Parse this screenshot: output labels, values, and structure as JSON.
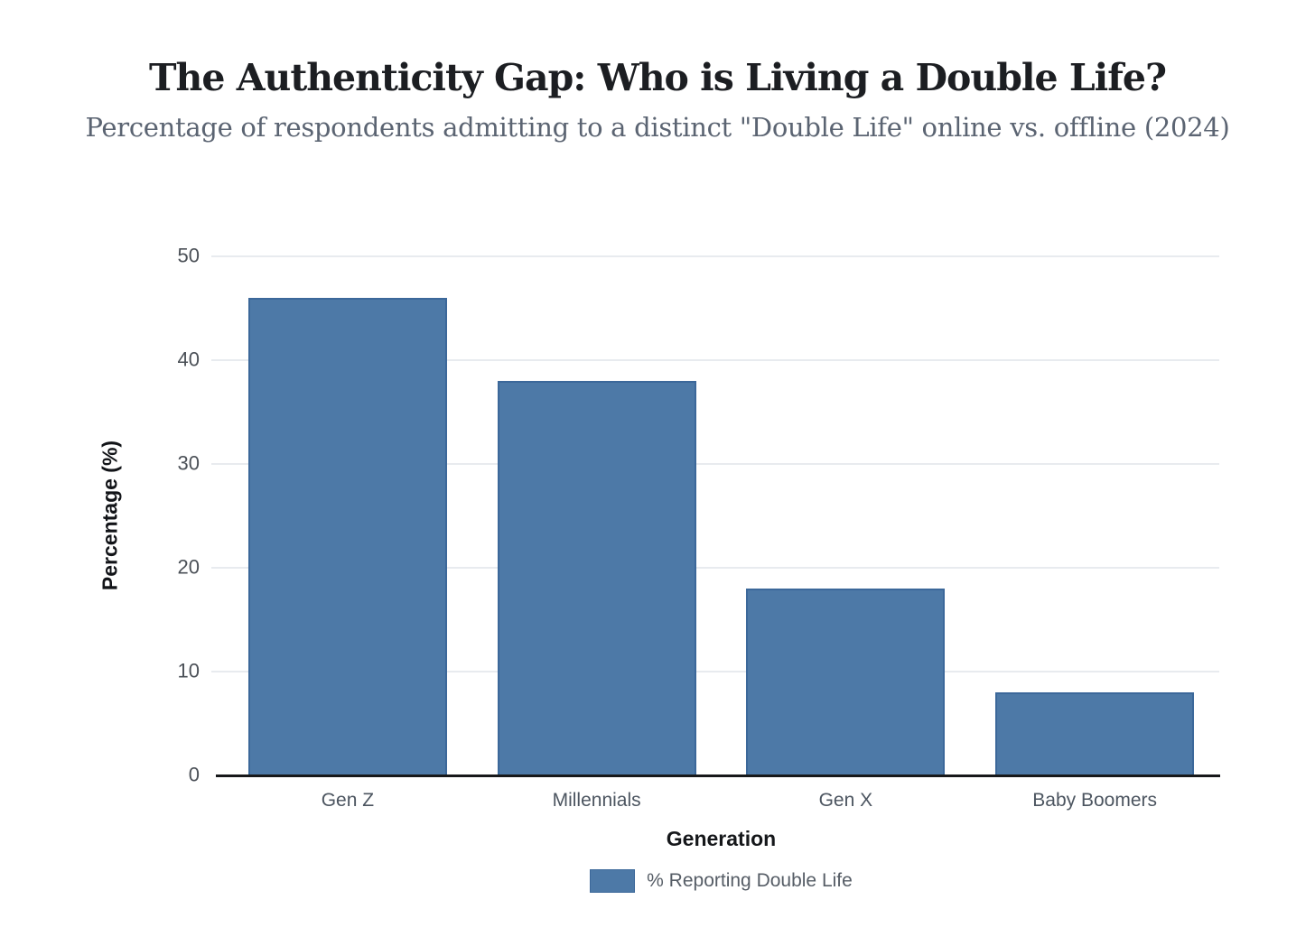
{
  "chart_data": {
    "type": "bar",
    "title": "The Authenticity Gap: Who is Living a Double Life?",
    "subtitle": "Percentage of respondents admitting to a distinct \"Double Life\" online vs. offline (2024)",
    "categories": [
      "Gen Z",
      "Millennials",
      "Gen X",
      "Baby Boomers"
    ],
    "series": [
      {
        "name": "% Reporting Double Life",
        "values": [
          46,
          38,
          18,
          8
        ]
      }
    ],
    "xlabel": "Generation",
    "ylabel": "Percentage (%)",
    "ylim": [
      0,
      50
    ],
    "yticks": [
      0,
      10,
      20,
      30,
      40,
      50
    ],
    "grid": true,
    "legend_position": "bottom",
    "colors": {
      "bar_fill": "#4d79a7",
      "bar_stroke": "#3c689a",
      "grid": "#e8ebef",
      "axis_line": "#17181a",
      "title": "#1c1e22",
      "subtitle": "#5b6472",
      "tick_label": "#4b5057",
      "background": "#ffffff"
    }
  }
}
